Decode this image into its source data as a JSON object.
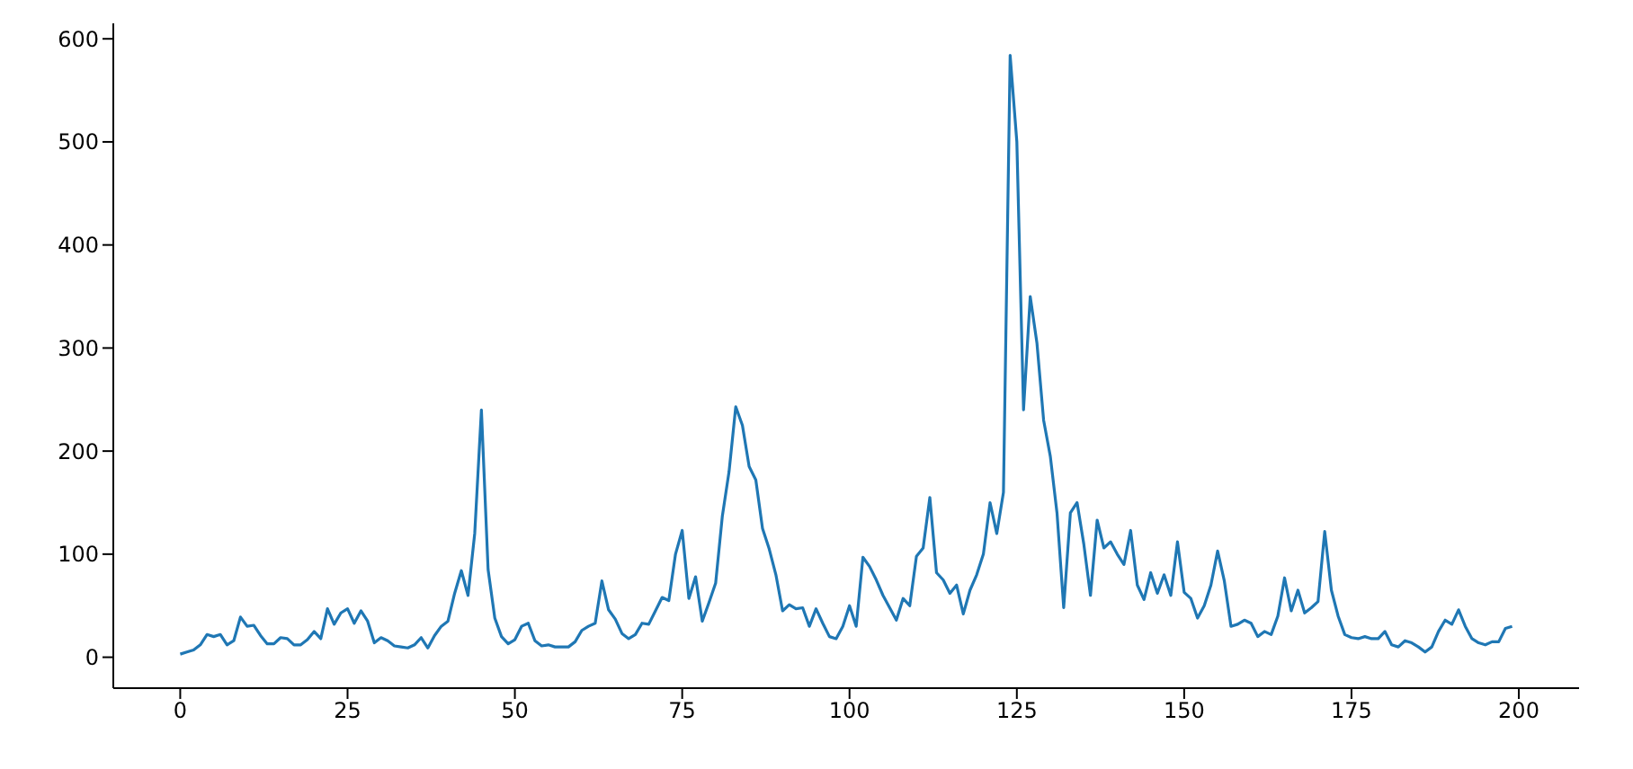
{
  "chart_data": {
    "type": "line",
    "xlim": [
      -10,
      209
    ],
    "ylim": [
      -30,
      615
    ],
    "xticks": [
      0,
      25,
      50,
      75,
      100,
      125,
      150,
      175,
      200
    ],
    "yticks": [
      0,
      100,
      200,
      300,
      400,
      500,
      600
    ],
    "grid": false,
    "legend": false,
    "marker": "none",
    "line_style": "solid",
    "x": [
      0,
      1,
      2,
      3,
      4,
      5,
      6,
      7,
      8,
      9,
      10,
      11,
      12,
      13,
      14,
      15,
      16,
      17,
      18,
      19,
      20,
      21,
      22,
      23,
      24,
      25,
      26,
      27,
      28,
      29,
      30,
      31,
      32,
      33,
      34,
      35,
      36,
      37,
      38,
      39,
      40,
      41,
      42,
      43,
      44,
      45,
      46,
      47,
      48,
      49,
      50,
      51,
      52,
      53,
      54,
      55,
      56,
      57,
      58,
      59,
      60,
      61,
      62,
      63,
      64,
      65,
      66,
      67,
      68,
      69,
      70,
      71,
      72,
      73,
      74,
      75,
      76,
      77,
      78,
      79,
      80,
      81,
      82,
      83,
      84,
      85,
      86,
      87,
      88,
      89,
      90,
      91,
      92,
      93,
      94,
      95,
      96,
      97,
      98,
      99,
      100,
      101,
      102,
      103,
      104,
      105,
      106,
      107,
      108,
      109,
      110,
      111,
      112,
      113,
      114,
      115,
      116,
      117,
      118,
      119,
      120,
      121,
      122,
      123,
      124,
      125,
      126,
      127,
      128,
      129,
      130,
      131,
      132,
      133,
      134,
      135,
      136,
      137,
      138,
      139,
      140,
      141,
      142,
      143,
      144,
      145,
      146,
      147,
      148,
      149,
      150,
      151,
      152,
      153,
      154,
      155,
      156,
      157,
      158,
      159,
      160,
      161,
      162,
      163,
      164,
      165,
      166,
      167,
      168,
      169,
      170,
      171,
      172,
      173,
      174,
      175,
      176,
      177,
      178,
      179,
      180,
      181,
      182,
      183,
      184,
      185,
      186,
      187,
      188,
      189,
      190,
      191,
      192,
      193,
      194,
      195,
      196,
      197,
      198,
      199
    ],
    "series": [
      {
        "color": "#1f77b4",
        "values": [
          3,
          5,
          7,
          12,
          22,
          20,
          22,
          12,
          16,
          39,
          30,
          31,
          21,
          13,
          13,
          19,
          18,
          12,
          12,
          17,
          25,
          18,
          47,
          32,
          43,
          47,
          33,
          45,
          35,
          14,
          19,
          16,
          11,
          10,
          9,
          12,
          19,
          9,
          21,
          30,
          35,
          62,
          84,
          60,
          120,
          240,
          85,
          38,
          20,
          13,
          17,
          30,
          33,
          16,
          11,
          12,
          10,
          10,
          10,
          15,
          26,
          30,
          33,
          74,
          46,
          37,
          23,
          18,
          22,
          33,
          32,
          45,
          58,
          55,
          100,
          123,
          57,
          78,
          35,
          53,
          72,
          137,
          180,
          243,
          225,
          185,
          172,
          125,
          105,
          80,
          45,
          51,
          47,
          48,
          30,
          47,
          33,
          20,
          18,
          30,
          50,
          30,
          97,
          88,
          75,
          60,
          48,
          36,
          57,
          50,
          98,
          106,
          155,
          82,
          75,
          62,
          70,
          42,
          65,
          80,
          100,
          150,
          120,
          160,
          584,
          500,
          240,
          350,
          305,
          230,
          195,
          140,
          48,
          140,
          150,
          110,
          60,
          133,
          106,
          112,
          100,
          90,
          123,
          70,
          56,
          82,
          62,
          80,
          60,
          112,
          63,
          57,
          38,
          50,
          70,
          103,
          74,
          30,
          32,
          36,
          33,
          20,
          25,
          22,
          40,
          77,
          45,
          65,
          43,
          48,
          54,
          122,
          65,
          40,
          22,
          19,
          18,
          20,
          18,
          18,
          25,
          12,
          10,
          16,
          14,
          10,
          5,
          10,
          25,
          36,
          32,
          46,
          30,
          18,
          14,
          12,
          15,
          15,
          28,
          30
        ]
      }
    ]
  }
}
